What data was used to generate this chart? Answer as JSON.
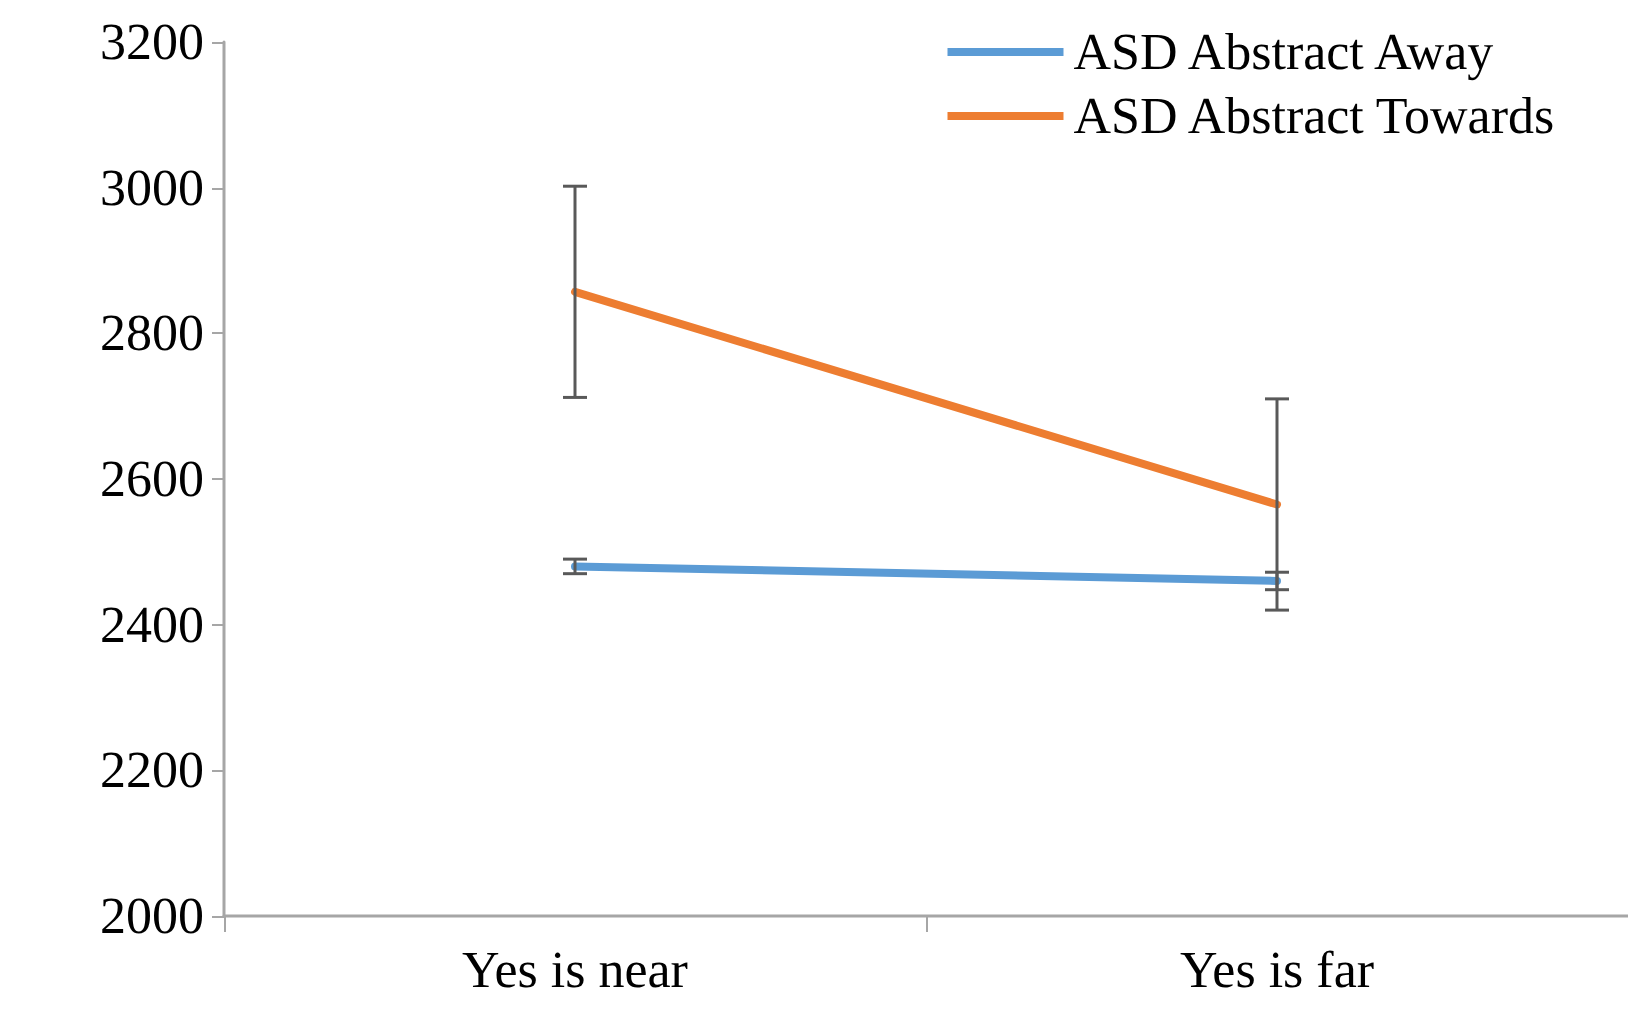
{
  "chart_data": {
    "type": "line",
    "categories": [
      "Yes is near",
      "Yes is far"
    ],
    "series": [
      {
        "name": "ASD Abstract Away",
        "color": "#5b9bd5",
        "values": [
          2480,
          2460
        ],
        "errors": [
          10,
          12
        ]
      },
      {
        "name": "ASD Abstract Towards",
        "color": "#ed7d31",
        "values": [
          2857,
          2565
        ],
        "errors": [
          145,
          145
        ]
      }
    ],
    "ylim": [
      2000,
      3200
    ],
    "yticks": [
      2000,
      2200,
      2400,
      2600,
      2800,
      3000,
      3200
    ],
    "grid": false,
    "legend": "top right",
    "marker": "none",
    "line_style": "solid"
  }
}
